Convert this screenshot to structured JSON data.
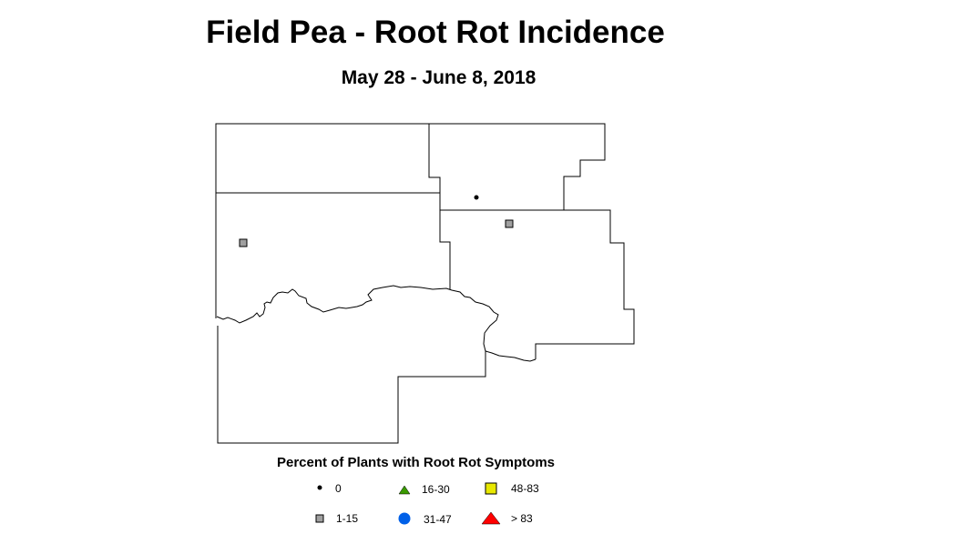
{
  "title": "Field Pea - Root Rot Incidence",
  "subtitle": "May 28 - June 8, 2018",
  "legend": {
    "title": "Percent of Plants with Root Rot Symptoms",
    "items": [
      {
        "label": "0",
        "symbol": "dot",
        "color": "#000000"
      },
      {
        "label": "16-30",
        "symbol": "triangle",
        "color": "#3a9a00"
      },
      {
        "label": "48-83",
        "symbol": "square",
        "color": "#e8e800"
      },
      {
        "label": "1-15",
        "symbol": "square",
        "color": "#a0a0a0"
      },
      {
        "label": "31-47",
        "symbol": "circle",
        "color": "#0060e8"
      },
      {
        "label": "> 83",
        "symbol": "triangle",
        "color": "#ff0000"
      }
    ]
  },
  "observations": [
    {
      "category": "0",
      "symbol": "dot"
    },
    {
      "category": "1-15",
      "symbol": "square"
    },
    {
      "category": "1-15",
      "symbol": "square"
    }
  ]
}
